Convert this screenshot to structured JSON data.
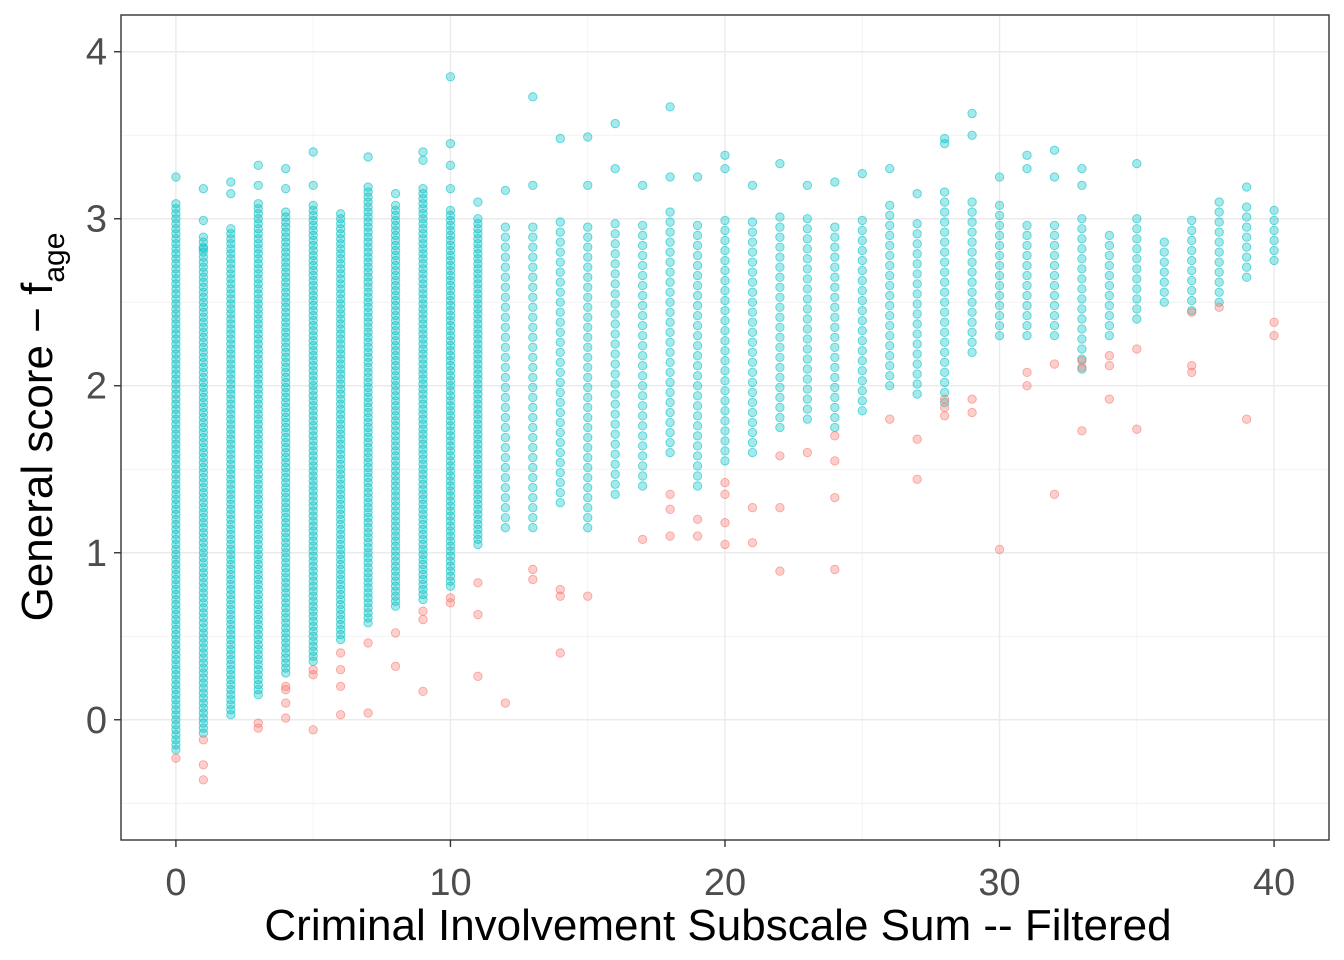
{
  "chart_data": {
    "type": "scatter",
    "xlabel": "Criminal Involvement Subscale Sum -- Filtered",
    "ylabel": {
      "main": "General score − f",
      "subscript": "age"
    },
    "xlim": [
      -2,
      42
    ],
    "ylim": [
      -0.72,
      4.22
    ],
    "x_ticks": [
      0,
      10,
      20,
      30,
      40
    ],
    "y_ticks": [
      0,
      1,
      2,
      3,
      4
    ],
    "x_tick_labels": [
      "0",
      "10",
      "20",
      "30",
      "40"
    ],
    "y_tick_labels": [
      "0",
      "1",
      "2",
      "3",
      "4"
    ],
    "grid": true,
    "legend": "none",
    "point_opacity": 0.35,
    "series": [
      {
        "color": "#00BFC4",
        "columns": [
          {
            "x": 0,
            "ymin": -0.18,
            "ymax": 3.1,
            "extra": [
              3.25
            ]
          },
          {
            "x": 1,
            "ymin": -0.08,
            "ymax": 2.9,
            "extra": [
              3.18,
              2.99,
              2.82
            ]
          },
          {
            "x": 2,
            "ymin": 0.03,
            "ymax": 2.95,
            "extra": [
              3.22,
              3.15
            ]
          },
          {
            "x": 3,
            "ymin": 0.15,
            "ymax": 3.1,
            "extra": [
              3.32,
              3.2
            ]
          },
          {
            "x": 4,
            "ymin": 0.28,
            "ymax": 3.05,
            "extra": [
              3.3,
              3.18
            ]
          },
          {
            "x": 5,
            "ymin": 0.35,
            "ymax": 3.1,
            "extra": [
              3.4,
              3.2
            ]
          },
          {
            "x": 6,
            "ymin": 0.48,
            "ymax": 3.05,
            "extra": []
          },
          {
            "x": 7,
            "ymin": 0.58,
            "ymax": 3.2,
            "extra": [
              3.37
            ]
          },
          {
            "x": 8,
            "ymin": 0.68,
            "ymax": 3.1,
            "extra": [
              3.15
            ]
          },
          {
            "x": 9,
            "ymin": 0.72,
            "ymax": 3.2,
            "extra": [
              3.35,
              3.4
            ]
          },
          {
            "x": 10,
            "ymin": 0.8,
            "ymax": 3.05,
            "extra": [
              3.85,
              3.45,
              3.32,
              3.18
            ]
          },
          {
            "x": 11,
            "ymin": 1.05,
            "ymax": 3.0,
            "extra": [
              3.1
            ]
          },
          {
            "x": 12,
            "ymin": 1.15,
            "ymax": 3.0,
            "extra": [
              3.17
            ]
          },
          {
            "x": 13,
            "ymin": 1.15,
            "ymax": 3.0,
            "extra": [
              3.73,
              3.2
            ]
          },
          {
            "x": 14,
            "ymin": 1.3,
            "ymax": 3.0,
            "extra": [
              3.48
            ]
          },
          {
            "x": 15,
            "ymin": 1.15,
            "ymax": 3.0,
            "extra": [
              3.49,
              3.2
            ]
          },
          {
            "x": 16,
            "ymin": 1.35,
            "ymax": 3.0,
            "extra": [
              3.57,
              3.3
            ]
          },
          {
            "x": 17,
            "ymin": 1.4,
            "ymax": 3.0,
            "extra": [
              3.2
            ]
          },
          {
            "x": 18,
            "ymin": 1.6,
            "ymax": 3.05,
            "extra": [
              3.67,
              3.25
            ]
          },
          {
            "x": 19,
            "ymin": 1.4,
            "ymax": 3.0,
            "extra": [
              3.25
            ]
          },
          {
            "x": 20,
            "ymin": 1.55,
            "ymax": 3.0,
            "extra": [
              3.38,
              3.3
            ]
          },
          {
            "x": 21,
            "ymin": 1.6,
            "ymax": 3.0,
            "extra": [
              3.2
            ]
          },
          {
            "x": 22,
            "ymin": 1.75,
            "ymax": 3.05,
            "extra": [
              3.33
            ]
          },
          {
            "x": 23,
            "ymin": 1.8,
            "ymax": 3.05,
            "extra": [
              3.2
            ]
          },
          {
            "x": 24,
            "ymin": 1.75,
            "ymax": 3.0,
            "extra": [
              3.22
            ]
          },
          {
            "x": 25,
            "ymin": 1.85,
            "ymax": 3.0,
            "extra": [
              3.27
            ]
          },
          {
            "x": 26,
            "ymin": 2.0,
            "ymax": 3.1,
            "extra": [
              3.3
            ]
          },
          {
            "x": 27,
            "ymin": 1.95,
            "ymax": 3.0,
            "extra": [
              3.15
            ]
          },
          {
            "x": 28,
            "ymin": 1.9,
            "ymax": 3.2,
            "extra": [
              3.48,
              3.45
            ]
          },
          {
            "x": 29,
            "ymin": 2.2,
            "ymax": 3.1,
            "extra": [
              3.63,
              3.5
            ]
          },
          {
            "x": 30,
            "ymin": 2.3,
            "ymax": 3.1,
            "extra": [
              3.25
            ]
          },
          {
            "x": 31,
            "ymin": 2.3,
            "ymax": 3.0,
            "extra": [
              3.38,
              3.3
            ]
          },
          {
            "x": 32,
            "ymin": 2.3,
            "ymax": 3.0,
            "extra": [
              3.41,
              3.25
            ]
          },
          {
            "x": 33,
            "ymin": 2.1,
            "ymax": 3.0,
            "extra": [
              3.3,
              3.2
            ]
          },
          {
            "x": 34,
            "ymin": 2.3,
            "ymax": 2.9,
            "extra": []
          },
          {
            "x": 35,
            "ymin": 2.4,
            "ymax": 3.0,
            "extra": [
              3.33
            ]
          },
          {
            "x": 36,
            "ymin": 2.5,
            "ymax": 2.9,
            "extra": []
          },
          {
            "x": 37,
            "ymin": 2.45,
            "ymax": 3.0,
            "extra": []
          },
          {
            "x": 38,
            "ymin": 2.5,
            "ymax": 3.1,
            "extra": []
          },
          {
            "x": 39,
            "ymin": 2.65,
            "ymax": 3.1,
            "extra": [
              3.19
            ]
          },
          {
            "x": 40,
            "ymin": 2.75,
            "ymax": 3.05,
            "extra": []
          }
        ]
      },
      {
        "color": "#F8766D",
        "points": [
          [
            0,
            -0.23
          ],
          [
            1,
            -0.12
          ],
          [
            1,
            -0.27
          ],
          [
            1,
            -0.36
          ],
          [
            3,
            -0.02
          ],
          [
            3,
            -0.05
          ],
          [
            4,
            0.2
          ],
          [
            4,
            0.18
          ],
          [
            4,
            0.1
          ],
          [
            4,
            0.01
          ],
          [
            5,
            0.3
          ],
          [
            5,
            0.27
          ],
          [
            5,
            -0.06
          ],
          [
            6,
            0.4
          ],
          [
            6,
            0.3
          ],
          [
            6,
            0.2
          ],
          [
            6,
            0.03
          ],
          [
            7,
            0.46
          ],
          [
            7,
            0.04
          ],
          [
            8,
            0.52
          ],
          [
            8,
            0.32
          ],
          [
            9,
            0.65
          ],
          [
            9,
            0.6
          ],
          [
            9,
            0.17
          ],
          [
            10,
            0.73
          ],
          [
            10,
            0.7
          ],
          [
            11,
            0.82
          ],
          [
            11,
            0.63
          ],
          [
            11,
            0.26
          ],
          [
            12,
            0.1
          ],
          [
            13,
            0.9
          ],
          [
            13,
            0.84
          ],
          [
            14,
            0.78
          ],
          [
            14,
            0.74
          ],
          [
            14,
            0.4
          ],
          [
            15,
            0.74
          ],
          [
            17,
            1.08
          ],
          [
            18,
            1.35
          ],
          [
            18,
            1.26
          ],
          [
            18,
            1.1
          ],
          [
            19,
            1.2
          ],
          [
            19,
            1.1
          ],
          [
            20,
            1.42
          ],
          [
            20,
            1.35
          ],
          [
            20,
            1.18
          ],
          [
            20,
            1.05
          ],
          [
            21,
            1.27
          ],
          [
            21,
            1.06
          ],
          [
            22,
            1.58
          ],
          [
            22,
            1.27
          ],
          [
            22,
            0.89
          ],
          [
            23,
            1.6
          ],
          [
            24,
            1.7
          ],
          [
            24,
            1.55
          ],
          [
            24,
            1.33
          ],
          [
            24,
            0.9
          ],
          [
            26,
            1.8
          ],
          [
            27,
            1.68
          ],
          [
            27,
            1.44
          ],
          [
            28,
            1.92
          ],
          [
            28,
            1.87
          ],
          [
            28,
            1.82
          ],
          [
            29,
            1.92
          ],
          [
            29,
            1.84
          ],
          [
            30,
            1.02
          ],
          [
            31,
            2.08
          ],
          [
            31,
            2.0
          ],
          [
            32,
            2.13
          ],
          [
            32,
            1.35
          ],
          [
            33,
            2.15
          ],
          [
            33,
            2.11
          ],
          [
            33,
            1.73
          ],
          [
            34,
            2.18
          ],
          [
            34,
            2.12
          ],
          [
            34,
            1.92
          ],
          [
            35,
            2.22
          ],
          [
            35,
            1.74
          ],
          [
            37,
            2.44
          ],
          [
            37,
            2.12
          ],
          [
            37,
            2.08
          ],
          [
            38,
            2.47
          ],
          [
            39,
            1.8
          ],
          [
            40,
            2.38
          ],
          [
            40,
            2.3
          ]
        ]
      }
    ]
  }
}
